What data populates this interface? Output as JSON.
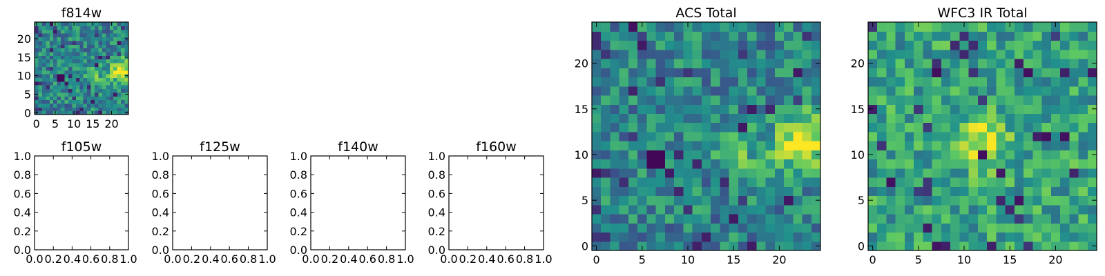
{
  "figure": {
    "background": "#ffffff",
    "colormap": "viridis",
    "colormap_stops": [
      "#440154",
      "#3b528b",
      "#21918c",
      "#5ec962",
      "#fde725"
    ]
  },
  "chart_data": [
    {
      "type": "heatmap",
      "title": "f814w",
      "grid_size": [
        25,
        25
      ],
      "xlim": [
        -0.5,
        24.5
      ],
      "ylim": [
        -0.5,
        24.5
      ],
      "xticks": [
        0,
        5,
        10,
        15,
        20
      ],
      "yticks": [
        0,
        5,
        10,
        15,
        20
      ],
      "xtick_labels": [
        "0",
        "5",
        "10",
        "15",
        "20"
      ],
      "ytick_labels": [
        "0",
        "5",
        "10",
        "15",
        "20"
      ],
      "origin": "lower",
      "note_values": "normalized pixel intensity 0-1; bright blob around x=20-24, y=9-15 and dark pixels near x=6-7, y=9-11"
    },
    {
      "type": "scatter",
      "title": "f105w",
      "series": [],
      "xlim": [
        0,
        1
      ],
      "ylim": [
        0,
        1
      ],
      "xtick_labels": [
        "0.0",
        "0.2",
        "0.4",
        "0.6",
        "0.8",
        "1.0"
      ],
      "ytick_labels": [
        "0.0",
        "0.2",
        "0.4",
        "0.6",
        "0.8",
        "1.0"
      ]
    },
    {
      "type": "scatter",
      "title": "f125w",
      "series": [],
      "xlim": [
        0,
        1
      ],
      "ylim": [
        0,
        1
      ],
      "xtick_labels": [
        "0.0",
        "0.2",
        "0.4",
        "0.6",
        "0.8",
        "1.0"
      ],
      "ytick_labels": [
        "0.0",
        "0.2",
        "0.4",
        "0.6",
        "0.8",
        "1.0"
      ]
    },
    {
      "type": "scatter",
      "title": "f140w",
      "series": [],
      "xlim": [
        0,
        1
      ],
      "ylim": [
        0,
        1
      ],
      "xtick_labels": [
        "0.0",
        "0.2",
        "0.4",
        "0.6",
        "0.8",
        "1.0"
      ],
      "ytick_labels": [
        "0.0",
        "0.2",
        "0.4",
        "0.6",
        "0.8",
        "1.0"
      ]
    },
    {
      "type": "scatter",
      "title": "f160w",
      "series": [],
      "xlim": [
        0,
        1
      ],
      "ylim": [
        0,
        1
      ],
      "xtick_labels": [
        "0.0",
        "0.2",
        "0.4",
        "0.6",
        "0.8",
        "1.0"
      ],
      "ytick_labels": [
        "0.0",
        "0.2",
        "0.4",
        "0.6",
        "0.8",
        "1.0"
      ]
    },
    {
      "type": "heatmap",
      "title": "ACS Total",
      "grid_size": [
        25,
        25
      ],
      "xlim": [
        -0.5,
        24.5
      ],
      "ylim": [
        -0.5,
        24.5
      ],
      "xticks": [
        0,
        5,
        10,
        15,
        20
      ],
      "yticks": [
        0,
        5,
        10,
        15,
        20
      ],
      "xtick_labels": [
        "0",
        "5",
        "10",
        "15",
        "20"
      ],
      "ytick_labels": [
        "0",
        "5",
        "10",
        "15",
        "20"
      ],
      "origin": "lower",
      "note_values": "same image as f814w; bright (yellow) region around x=20-24, y=8-14; dark pixels at x=6-7, y=9-10"
    },
    {
      "type": "heatmap",
      "title": "WFC3 IR Total",
      "grid_size": [
        25,
        25
      ],
      "xlim": [
        -0.5,
        24.5
      ],
      "ylim": [
        -0.5,
        24.5
      ],
      "xticks": [
        0,
        5,
        10,
        15,
        20
      ],
      "yticks": [
        0,
        5,
        10,
        15,
        20
      ],
      "xtick_labels": [
        "0",
        "5",
        "10",
        "15",
        "20"
      ],
      "ytick_labels": [
        "0",
        "5",
        "10",
        "15",
        "20"
      ],
      "origin": "lower",
      "note_values": "mostly green-yellow noise; brighter region around x=10-14, y=10-13"
    }
  ]
}
